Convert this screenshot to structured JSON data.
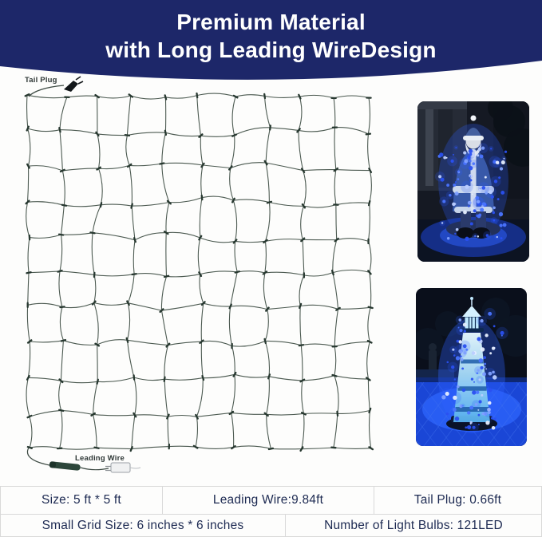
{
  "header": {
    "title_line1": "Premium Material",
    "title_line2": "with Long Leading WireDesign"
  },
  "diagram": {
    "tail_plug_label": "Tail Plug",
    "leading_wire_label": "Leading Wire"
  },
  "photos": {
    "top": "santa-statue-wrapped-in-blue-net-lights",
    "bottom": "lighthouse-wrapped-in-blue-net-lights"
  },
  "spec_table": {
    "row1": [
      {
        "label": "Size: 5 ft * 5 ft"
      },
      {
        "label": "Leading Wire:9.84ft"
      },
      {
        "label": "Tail Plug: 0.66ft"
      }
    ],
    "row2": [
      {
        "label": "Small Grid Size: 6 inches * 6 inches"
      },
      {
        "label": "Number of Light Bulbs: 121LED"
      }
    ]
  },
  "colors": {
    "banner_navy": "#1d2769",
    "wire_green": "#4c5a51",
    "knot_green": "#273830",
    "table_text": "#1d2a52",
    "table_border": "#d9d9d9",
    "led_blue": "#2e5bff"
  }
}
